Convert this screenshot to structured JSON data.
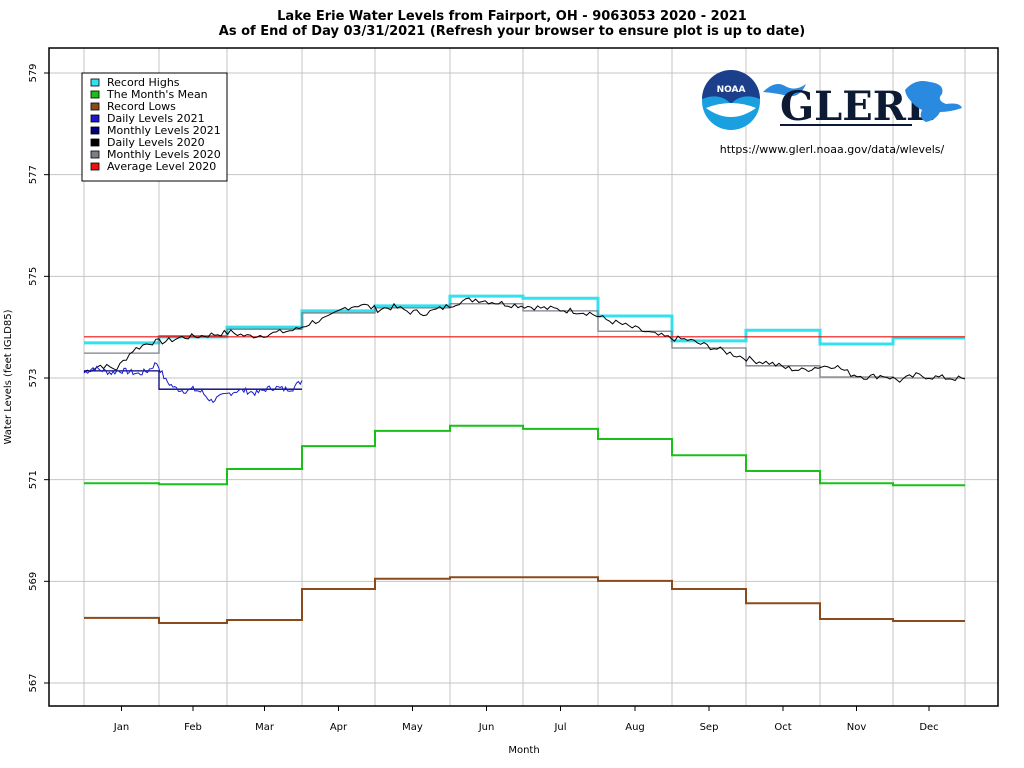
{
  "chart_data": {
    "type": "line",
    "title": "Lake Erie Water Levels from Fairport, OH - 9063053 2020 - 2021",
    "subtitle": "As of End of Day 03/31/2021 (Refresh your browser to ensure plot is up to date)",
    "xlabel": "Month",
    "ylabel": "Water Levels (feet IGLD85)",
    "ylim": [
      566.5,
      579.5
    ],
    "yticks": [
      567,
      569,
      571,
      573,
      575,
      577,
      579
    ],
    "categories": [
      "Jan",
      "Feb",
      "Mar",
      "Apr",
      "May",
      "Jun",
      "Jul",
      "Aug",
      "Sep",
      "Oct",
      "Nov",
      "Dec"
    ],
    "grid": true,
    "legend_position": "top-left",
    "series": [
      {
        "name": "Record Highs",
        "kind": "monthly-step",
        "color": "#33e0ee",
        "values": [
          573.69,
          573.81,
          574.0,
          574.32,
          574.42,
          574.61,
          574.57,
          574.22,
          573.73,
          573.94,
          573.67,
          573.79
        ]
      },
      {
        "name": "The Month's Mean",
        "kind": "monthly-step",
        "color": "#18c018",
        "values": [
          570.93,
          570.91,
          571.21,
          571.66,
          571.96,
          572.06,
          572.0,
          571.8,
          571.48,
          571.17,
          570.93,
          570.89
        ]
      },
      {
        "name": "Record Lows",
        "kind": "monthly-step",
        "color": "#8b4a1c",
        "values": [
          568.28,
          568.18,
          568.24,
          568.85,
          569.05,
          569.08,
          569.08,
          569.01,
          568.85,
          568.57,
          568.26,
          568.22
        ]
      },
      {
        "name": "Daily Levels 2021",
        "kind": "daily",
        "color": "#1a1acc",
        "month_range": [
          1,
          3
        ],
        "anchor_values": [
          573.1,
          573.2,
          573.15,
          573.1,
          573.15,
          573.12,
          573.08,
          573.14,
          573.3,
          572.95,
          572.8,
          572.75,
          572.78,
          572.72,
          572.55,
          572.62,
          572.7,
          572.76,
          572.74,
          572.7,
          572.78,
          572.82,
          572.78,
          572.8,
          572.95
        ]
      },
      {
        "name": "Monthly Levels 2021",
        "kind": "monthly-step",
        "color": "#00007a",
        "months": [
          "Jan",
          "Feb",
          "Mar"
        ],
        "values": [
          573.14,
          572.78,
          572.78
        ]
      },
      {
        "name": "Daily Levels 2020",
        "kind": "daily",
        "color": "#000000",
        "month_range": [
          1,
          12
        ],
        "anchor_values": [
          573.12,
          573.25,
          573.18,
          573.55,
          573.7,
          573.72,
          573.8,
          573.82,
          573.86,
          573.9,
          573.82,
          573.85,
          573.9,
          573.95,
          574.1,
          574.18,
          574.38,
          574.45,
          574.35,
          574.4,
          574.3,
          574.28,
          574.38,
          574.5,
          574.55,
          574.5,
          574.45,
          574.42,
          574.38,
          574.35,
          574.32,
          574.28,
          574.15,
          574.05,
          573.95,
          573.85,
          573.78,
          573.75,
          573.65,
          573.55,
          573.45,
          573.35,
          573.3,
          573.2,
          573.15,
          573.22,
          573.25,
          573.08,
          573.02,
          573.05,
          572.95,
          573.05,
          573.02,
          573.0,
          572.98
        ]
      },
      {
        "name": "Monthly Levels 2020",
        "kind": "monthly-step",
        "color": "#7a8088",
        "values": [
          573.49,
          573.83,
          573.96,
          574.28,
          574.38,
          574.46,
          574.32,
          573.92,
          573.59,
          573.24,
          573.02,
          573.0
        ]
      },
      {
        "name": "Average Level 2020",
        "kind": "constant",
        "color": "#ee1111",
        "value": 573.81
      }
    ]
  },
  "legend": {
    "items": [
      {
        "label": "Record Highs",
        "color": "#33e0ee"
      },
      {
        "label": "The Month's Mean",
        "color": "#18c018"
      },
      {
        "label": "Record Lows",
        "color": "#8b4a1c"
      },
      {
        "label": "Daily Levels 2021",
        "color": "#1a1acc"
      },
      {
        "label": "Monthly Levels 2021",
        "color": "#00007a"
      },
      {
        "label": "Daily Levels 2020",
        "color": "#000000"
      },
      {
        "label": "Monthly Levels 2020",
        "color": "#7a8088"
      },
      {
        "label": "Average Level 2020",
        "color": "#ee1111"
      }
    ]
  },
  "branding": {
    "noaa_label": "NOAA",
    "glerl_label": "GLERL",
    "url": "https://www.glerl.noaa.gov/data/wlevels/"
  }
}
